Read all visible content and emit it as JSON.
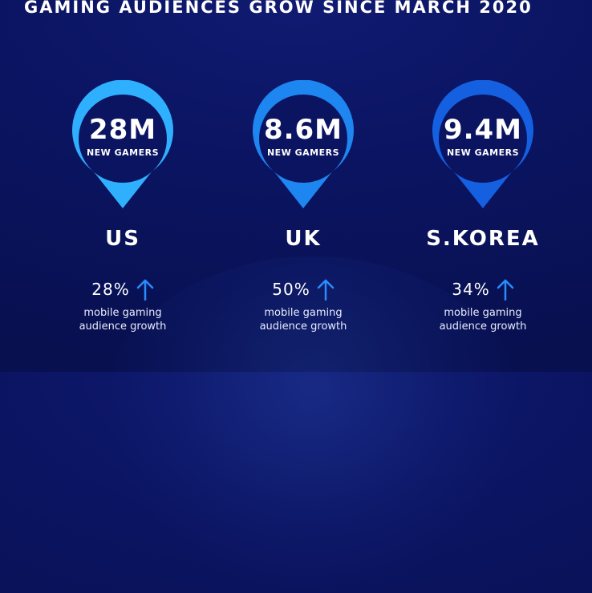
{
  "title": "GAMING AUDIENCES GROW SINCE MARCH 2020",
  "colors": {
    "background": "#0b1461",
    "pin_us": "#2fb0ff",
    "pin_uk": "#1e86f0",
    "pin_korea": "#1460e0",
    "arrow": "#2a8cff"
  },
  "icons": {
    "pin": "map-pin-icon",
    "growth": "arrow-up-icon"
  },
  "regions": [
    {
      "country": "US",
      "new_gamers": "28M",
      "new_gamers_label": "NEW GAMERS",
      "mobile_growth": "28%",
      "growth_label_line1": "mobile gaming",
      "growth_label_line2": "audience growth"
    },
    {
      "country": "UK",
      "new_gamers": "8.6M",
      "new_gamers_label": "NEW GAMERS",
      "mobile_growth": "50%",
      "growth_label_line1": "mobile gaming",
      "growth_label_line2": "audience growth"
    },
    {
      "country": "S.KOREA",
      "new_gamers": "9.4M",
      "new_gamers_label": "NEW GAMERS",
      "mobile_growth": "34%",
      "growth_label_line1": "mobile gaming",
      "growth_label_line2": "audience growth"
    }
  ]
}
